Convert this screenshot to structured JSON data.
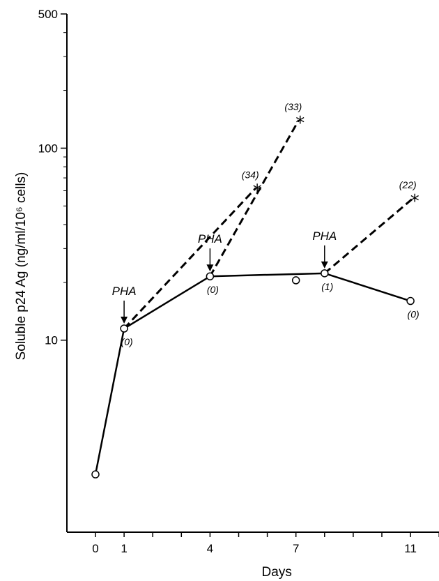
{
  "chart_data": {
    "type": "line",
    "xlabel": "Days",
    "ylabel": "Soluble p24 Ag (ng/ml/10⁶ cells)",
    "y_scale": "log",
    "ylim": [
      1,
      500
    ],
    "xlim": [
      -0.7,
      12.2
    ],
    "x_ticks": [
      0,
      1,
      2,
      3,
      4,
      5,
      6,
      7,
      8,
      9,
      10,
      11,
      12
    ],
    "x_tick_labels": [
      {
        "x": 0,
        "label": "0"
      },
      {
        "x": 1,
        "label": "1"
      },
      {
        "x": 4,
        "label": "4"
      },
      {
        "x": 7,
        "label": "7"
      },
      {
        "x": 11,
        "label": "11"
      }
    ],
    "y_tick_labels": [
      {
        "y": 10,
        "label": "10"
      },
      {
        "y": 100,
        "label": "100"
      },
      {
        "y": 500,
        "label": "500"
      }
    ],
    "y_minor_ticks": [
      20,
      30,
      40,
      50,
      60,
      70,
      80,
      90,
      200,
      300,
      400
    ],
    "series": [
      {
        "style": "solid-line-open-circles",
        "points": [
          {
            "x": 0,
            "y": 2.0,
            "label": ""
          },
          {
            "x": 1,
            "y": 11.5,
            "label": "(0)"
          },
          {
            "x": 4,
            "y": 21.5,
            "label": "(0)"
          },
          {
            "x": 8,
            "y": 22.3,
            "label": "(1)"
          },
          {
            "x": 11,
            "y": 16.0,
            "label": "(0)"
          }
        ]
      },
      {
        "style": "open-circle-only",
        "points": [
          {
            "x": 7,
            "y": 20.5,
            "label": ""
          }
        ]
      },
      {
        "style": "dashed-line-asterisk",
        "from": {
          "x": 1,
          "y": 11.5
        },
        "to": {
          "x": 5.6,
          "y": 62,
          "label": "(34)"
        }
      },
      {
        "style": "dashed-line-asterisk",
        "from": {
          "x": 4,
          "y": 21.5
        },
        "to": {
          "x": 7.1,
          "y": 140,
          "label": "(33)"
        }
      },
      {
        "style": "dashed-line-asterisk",
        "from": {
          "x": 8,
          "y": 22.3
        },
        "to": {
          "x": 11.1,
          "y": 55,
          "label": "(22)"
        }
      }
    ],
    "annotations": [
      {
        "text": "PHA",
        "x": 1,
        "y": 11.5,
        "arrow": true
      },
      {
        "text": "PHA",
        "x": 4,
        "y": 21.5,
        "arrow": true
      },
      {
        "text": "PHA",
        "x": 8,
        "y": 22.3,
        "arrow": true
      }
    ],
    "grid": false,
    "legend": "none"
  }
}
